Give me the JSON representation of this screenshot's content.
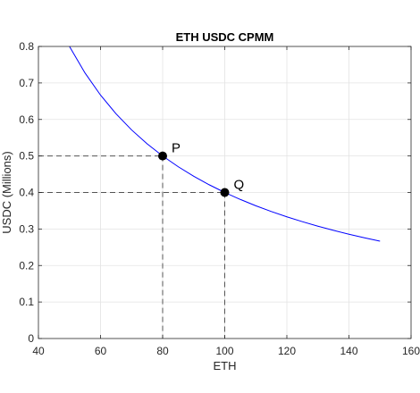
{
  "chart_data": {
    "type": "line",
    "title": "ETH USDC CPMM",
    "xlabel": "ETH",
    "ylabel": "USDC (Millions)",
    "xlim": [
      40,
      160
    ],
    "ylim": [
      0,
      0.8
    ],
    "xticks": [
      40,
      60,
      80,
      100,
      120,
      140,
      160
    ],
    "yticks": [
      0,
      0.1,
      0.2,
      0.3,
      0.4,
      0.5,
      0.6,
      0.7,
      0.8
    ],
    "grid": true,
    "series": [
      {
        "x": [
          50,
          55,
          60,
          65,
          70,
          75,
          80,
          85,
          90,
          95,
          100,
          105,
          110,
          115,
          120,
          125,
          130,
          135,
          140,
          145,
          150
        ],
        "y": [
          0.8,
          0.7273,
          0.6667,
          0.6154,
          0.5714,
          0.5333,
          0.5,
          0.4706,
          0.4444,
          0.4211,
          0.4,
          0.381,
          0.3636,
          0.3478,
          0.3333,
          0.32,
          0.3077,
          0.2963,
          0.2857,
          0.2759,
          0.2667
        ],
        "color": "#0000ff"
      }
    ],
    "points": [
      {
        "label": "P",
        "x": 80,
        "y": 0.5
      },
      {
        "label": "Q",
        "x": 100,
        "y": 0.4
      }
    ]
  }
}
